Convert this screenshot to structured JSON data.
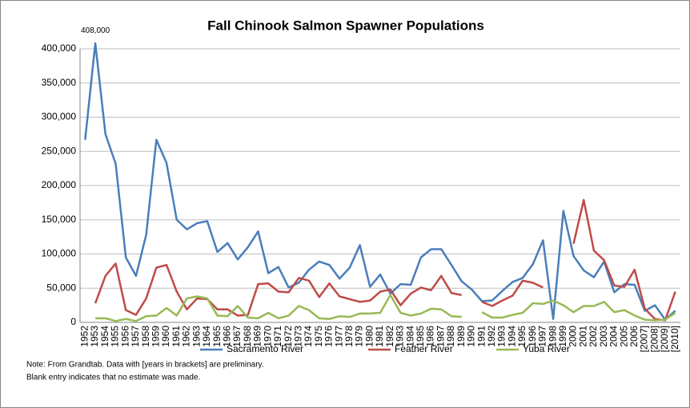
{
  "chart_data": {
    "type": "line",
    "title": "Fall Chinook Salmon Spawner Populations",
    "annotation": "408,000",
    "notes": [
      "Note:   From Grandtab.  Data with [years in brackets] are preliminary.",
      "Blank entry indicates that no estimate was made."
    ],
    "categories": [
      "1952",
      "1953",
      "1954",
      "1955",
      "1956",
      "1957",
      "1958",
      "1959",
      "1960",
      "1961",
      "1962",
      "1963",
      "1964",
      "1965",
      "1966",
      "1967",
      "1968",
      "1969",
      "1970",
      "1971",
      "1972",
      "1973",
      "1974",
      "1975",
      "1976",
      "1977",
      "1978",
      "1979",
      "1980",
      "1981",
      "1982",
      "1983",
      "1984",
      "1985",
      "1986",
      "1987",
      "1988",
      "1989",
      "1990",
      "1991",
      "1992",
      "1993",
      "1994",
      "1995",
      "1996",
      "1997",
      "1998",
      "1999",
      "2000",
      "2001",
      "2002",
      "2003",
      "2004",
      "2005",
      "2006",
      "[2007]",
      "[2008]",
      "[2009]",
      "[2010]"
    ],
    "series": [
      {
        "name": "Sacramento River",
        "color": "#4a7ebb",
        "values": [
          267000,
          408000,
          275000,
          232000,
          95000,
          68000,
          128000,
          267000,
          233000,
          150000,
          136000,
          145000,
          148000,
          103000,
          116000,
          92000,
          110000,
          133000,
          72000,
          81000,
          51000,
          58000,
          77000,
          89000,
          84000,
          64000,
          80000,
          113000,
          52000,
          70000,
          42000,
          56000,
          55000,
          95000,
          107000,
          107000,
          84000,
          60000,
          48000,
          31000,
          32000,
          46000,
          59000,
          65000,
          85000,
          120000,
          5000,
          163000,
          97000,
          76000,
          66000,
          89000,
          44000,
          56000,
          55000,
          17000,
          25000,
          4000,
          17000
        ]
      },
      {
        "name": "Feather River",
        "color": "#be4b48",
        "values": [
          null,
          28000,
          68000,
          86000,
          18000,
          11000,
          35000,
          80000,
          84000,
          45000,
          19000,
          35000,
          34000,
          19000,
          19000,
          10000,
          11000,
          56000,
          57000,
          45000,
          44000,
          65000,
          61000,
          37000,
          57000,
          38000,
          34000,
          30000,
          32000,
          45000,
          48000,
          25000,
          42000,
          51000,
          47000,
          68000,
          43000,
          40000,
          null,
          30000,
          24000,
          32000,
          39000,
          61000,
          58000,
          51000,
          null,
          null,
          115000,
          179000,
          105000,
          91000,
          54000,
          52000,
          77000,
          20000,
          5000,
          3000,
          45000
        ]
      },
      {
        "name": "Yuba River",
        "color": "#98b954",
        "values": [
          null,
          6000,
          6000,
          2000,
          5000,
          2000,
          9000,
          10000,
          21000,
          10000,
          35000,
          38000,
          35000,
          10000,
          9000,
          24000,
          7000,
          6000,
          14000,
          6000,
          10000,
          24000,
          18000,
          6000,
          5000,
          9000,
          8000,
          13000,
          13000,
          14000,
          40000,
          14000,
          10000,
          13000,
          20000,
          19000,
          9000,
          8000,
          null,
          15000,
          7000,
          7000,
          11000,
          14000,
          28000,
          27000,
          32000,
          25000,
          15000,
          24000,
          24000,
          30000,
          15000,
          18000,
          10000,
          4000,
          3000,
          4000,
          14000
        ]
      }
    ],
    "ylim": [
      0,
      400000
    ],
    "yticks": [
      0,
      {
        "value": 50000,
        "label": "50,000"
      },
      {
        "value": 100000,
        "label": "100,000"
      },
      {
        "value": 150000,
        "label": "150,000"
      },
      {
        "value": 200000,
        "label": "200,000"
      },
      {
        "value": 250000,
        "label": "250,000"
      },
      {
        "value": 300000,
        "label": "300,000"
      },
      {
        "value": 350000,
        "label": "350,000"
      },
      {
        "value": 400000,
        "label": "400,000"
      }
    ],
    "grid": true
  }
}
